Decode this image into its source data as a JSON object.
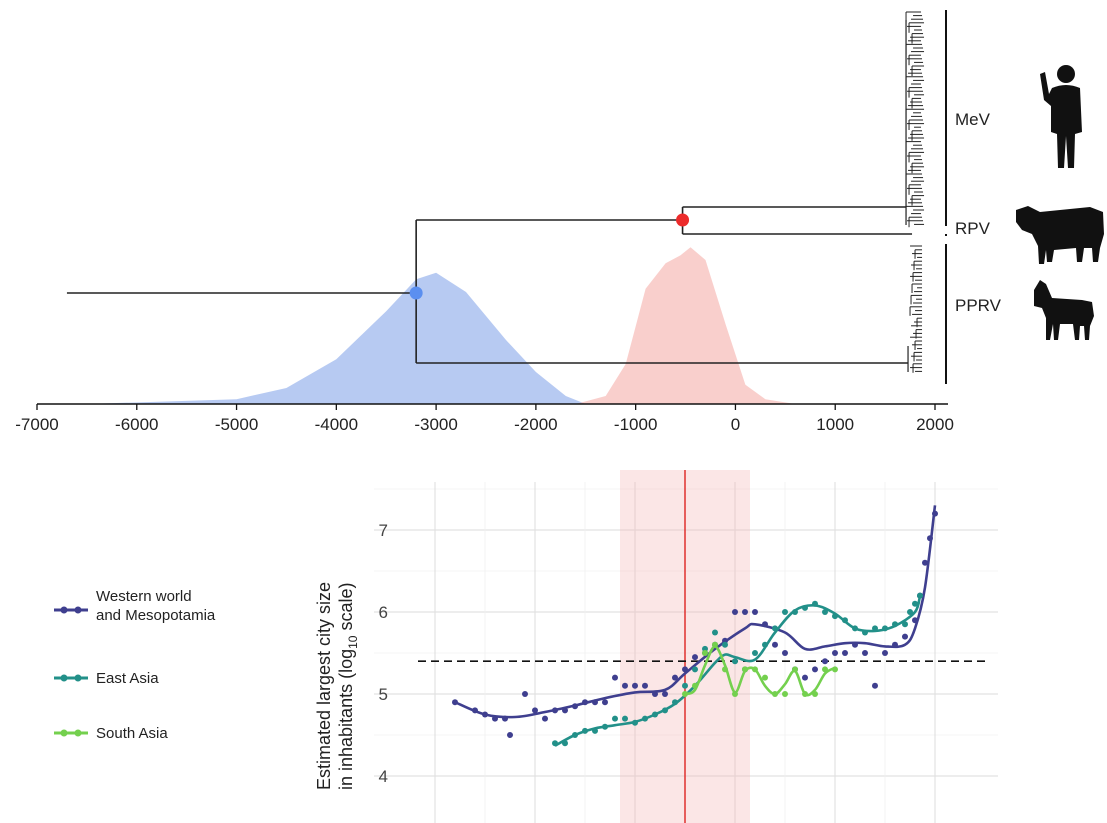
{
  "chart_data": [
    {
      "type": "area",
      "x_ticks": [
        "-7000",
        "-6000",
        "-5000",
        "-4000",
        "-3000",
        "-2000",
        "-1000",
        "0",
        "1000",
        "2000"
      ],
      "xlim": [
        -7000,
        2000
      ],
      "clade_labels": [
        "MeV",
        "RPV",
        "PPRV"
      ],
      "root_node_year": -3200,
      "mrca_node_year": -530,
      "root_branch_start_year": -6700,
      "tips_year": 1850,
      "density_blue": {
        "color": "#7b9fe8",
        "x": [
          -6500,
          -5000,
          -4500,
          -4000,
          -3500,
          -3200,
          -3000,
          -2700,
          -2300,
          -2000,
          -1700,
          -1500
        ],
        "y": [
          0.0,
          0.03,
          0.1,
          0.28,
          0.58,
          0.78,
          0.82,
          0.7,
          0.4,
          0.2,
          0.05,
          0.0
        ]
      },
      "density_red": {
        "color": "#f4a7a3",
        "x": [
          -1600,
          -1300,
          -1100,
          -900,
          -700,
          -550,
          -450,
          -300,
          -100,
          100,
          300,
          600
        ],
        "y": [
          0.0,
          0.05,
          0.25,
          0.72,
          0.88,
          0.93,
          0.98,
          0.9,
          0.5,
          0.12,
          0.03,
          0.0
        ]
      }
    },
    {
      "type": "scatter",
      "y_ticks": [
        "4",
        "5",
        "6",
        "7"
      ],
      "ylim": [
        3.7,
        7.5
      ],
      "xlim": [
        -3400,
        2100
      ],
      "ylabel": "Estimated largest city size in inhabitants (log₁₀ scale)",
      "ylabel_line1": "Estimated largest city size",
      "ylabel_line2a": "in inhabitants (log",
      "ylabel_line2sub": "10",
      "ylabel_line2b": " scale)",
      "dashed_hline": 5.4,
      "vline_year": -500,
      "band_years": [
        -1150,
        150
      ],
      "series": [
        {
          "name": "Western world\nand Mesopotamia",
          "name_line1": "Western world",
          "name_line2": "and Mesopotamia",
          "color": "#3f3f8f",
          "points": [
            [
              -2800,
              4.9
            ],
            [
              -2600,
              4.8
            ],
            [
              -2500,
              4.75
            ],
            [
              -2400,
              4.7
            ],
            [
              -2300,
              4.7
            ],
            [
              -2250,
              4.5
            ],
            [
              -2100,
              5.0
            ],
            [
              -2000,
              4.8
            ],
            [
              -1900,
              4.7
            ],
            [
              -1800,
              4.8
            ],
            [
              -1700,
              4.8
            ],
            [
              -1600,
              4.85
            ],
            [
              -1500,
              4.9
            ],
            [
              -1400,
              4.9
            ],
            [
              -1300,
              4.9
            ],
            [
              -1200,
              5.2
            ],
            [
              -1100,
              5.1
            ],
            [
              -1000,
              5.1
            ],
            [
              -900,
              5.1
            ],
            [
              -800,
              5.0
            ],
            [
              -700,
              5.0
            ],
            [
              -600,
              5.2
            ],
            [
              -500,
              5.3
            ],
            [
              -400,
              5.45
            ],
            [
              -300,
              5.5
            ],
            [
              -200,
              5.6
            ],
            [
              -100,
              5.65
            ],
            [
              0,
              6.0
            ],
            [
              100,
              6.0
            ],
            [
              200,
              6.0
            ],
            [
              300,
              5.85
            ],
            [
              400,
              5.6
            ],
            [
              500,
              5.5
            ],
            [
              600,
              5.3
            ],
            [
              700,
              5.2
            ],
            [
              800,
              5.3
            ],
            [
              900,
              5.4
            ],
            [
              1000,
              5.5
            ],
            [
              1100,
              5.5
            ],
            [
              1200,
              5.6
            ],
            [
              1300,
              5.5
            ],
            [
              1400,
              5.1
            ],
            [
              1500,
              5.5
            ],
            [
              1600,
              5.6
            ],
            [
              1700,
              5.7
            ],
            [
              1800,
              5.9
            ],
            [
              1850,
              6.2
            ],
            [
              1900,
              6.6
            ],
            [
              1950,
              6.9
            ],
            [
              2000,
              7.2
            ]
          ],
          "curve": [
            [
              -2800,
              4.9
            ],
            [
              -2500,
              4.75
            ],
            [
              -2200,
              4.72
            ],
            [
              -1900,
              4.78
            ],
            [
              -1600,
              4.86
            ],
            [
              -1300,
              4.95
            ],
            [
              -1000,
              5.02
            ],
            [
              -700,
              5.05
            ],
            [
              -500,
              5.25
            ],
            [
              -200,
              5.55
            ],
            [
              100,
              5.8
            ],
            [
              200,
              5.85
            ],
            [
              500,
              5.75
            ],
            [
              700,
              5.55
            ],
            [
              900,
              5.58
            ],
            [
              1100,
              5.62
            ],
            [
              1300,
              5.62
            ],
            [
              1500,
              5.58
            ],
            [
              1700,
              5.6
            ],
            [
              1800,
              5.8
            ],
            [
              1900,
              6.3
            ],
            [
              2000,
              7.3
            ]
          ]
        },
        {
          "name": "East Asia",
          "color": "#229089",
          "points": [
            [
              -1800,
              4.4
            ],
            [
              -1700,
              4.4
            ],
            [
              -1600,
              4.5
            ],
            [
              -1500,
              4.55
            ],
            [
              -1400,
              4.55
            ],
            [
              -1300,
              4.6
            ],
            [
              -1200,
              4.7
            ],
            [
              -1100,
              4.7
            ],
            [
              -1000,
              4.65
            ],
            [
              -900,
              4.7
            ],
            [
              -800,
              4.75
            ],
            [
              -700,
              4.8
            ],
            [
              -600,
              4.9
            ],
            [
              -500,
              5.1
            ],
            [
              -400,
              5.3
            ],
            [
              -300,
              5.55
            ],
            [
              -200,
              5.75
            ],
            [
              -100,
              5.6
            ],
            [
              0,
              5.4
            ],
            [
              100,
              5.3
            ],
            [
              200,
              5.5
            ],
            [
              300,
              5.6
            ],
            [
              400,
              5.8
            ],
            [
              500,
              6.0
            ],
            [
              600,
              6.0
            ],
            [
              700,
              6.05
            ],
            [
              800,
              6.1
            ],
            [
              900,
              6.0
            ],
            [
              1000,
              5.95
            ],
            [
              1100,
              5.9
            ],
            [
              1200,
              5.8
            ],
            [
              1300,
              5.75
            ],
            [
              1400,
              5.8
            ],
            [
              1500,
              5.8
            ],
            [
              1600,
              5.85
            ],
            [
              1700,
              5.85
            ],
            [
              1750,
              6.0
            ],
            [
              1800,
              6.1
            ],
            [
              1850,
              6.2
            ]
          ],
          "curve": [
            [
              -1800,
              4.37
            ],
            [
              -1600,
              4.5
            ],
            [
              -1400,
              4.58
            ],
            [
              -1200,
              4.62
            ],
            [
              -1000,
              4.66
            ],
            [
              -800,
              4.75
            ],
            [
              -600,
              4.88
            ],
            [
              -400,
              5.1
            ],
            [
              -200,
              5.38
            ],
            [
              -100,
              5.48
            ],
            [
              0,
              5.45
            ],
            [
              200,
              5.42
            ],
            [
              400,
              5.75
            ],
            [
              600,
              6.02
            ],
            [
              800,
              6.08
            ],
            [
              1000,
              5.98
            ],
            [
              1200,
              5.8
            ],
            [
              1400,
              5.77
            ],
            [
              1600,
              5.83
            ],
            [
              1800,
              6.0
            ],
            [
              1850,
              6.2
            ]
          ]
        },
        {
          "name": "South Asia",
          "color": "#74d04e",
          "points": [
            [
              -500,
              5.0
            ],
            [
              -400,
              5.1
            ],
            [
              -300,
              5.5
            ],
            [
              -200,
              5.6
            ],
            [
              -100,
              5.3
            ],
            [
              0,
              5.0
            ],
            [
              100,
              5.3
            ],
            [
              200,
              5.3
            ],
            [
              300,
              5.2
            ],
            [
              400,
              5.0
            ],
            [
              500,
              5.0
            ],
            [
              600,
              5.3
            ],
            [
              700,
              5.0
            ],
            [
              800,
              5.0
            ],
            [
              900,
              5.3
            ],
            [
              1000,
              5.3
            ]
          ],
          "curve": [
            [
              -500,
              5.0
            ],
            [
              -400,
              5.05
            ],
            [
              -300,
              5.35
            ],
            [
              -200,
              5.58
            ],
            [
              -100,
              5.35
            ],
            [
              0,
              5.02
            ],
            [
              100,
              5.28
            ],
            [
              200,
              5.3
            ],
            [
              300,
              5.1
            ],
            [
              400,
              5.0
            ],
            [
              500,
              5.12
            ],
            [
              600,
              5.28
            ],
            [
              700,
              5.0
            ],
            [
              800,
              5.05
            ],
            [
              900,
              5.25
            ],
            [
              1000,
              5.32
            ]
          ]
        }
      ]
    }
  ],
  "icons": [
    "human-silhouette-icon",
    "cow-silhouette-icon",
    "goat-silhouette-icon"
  ]
}
